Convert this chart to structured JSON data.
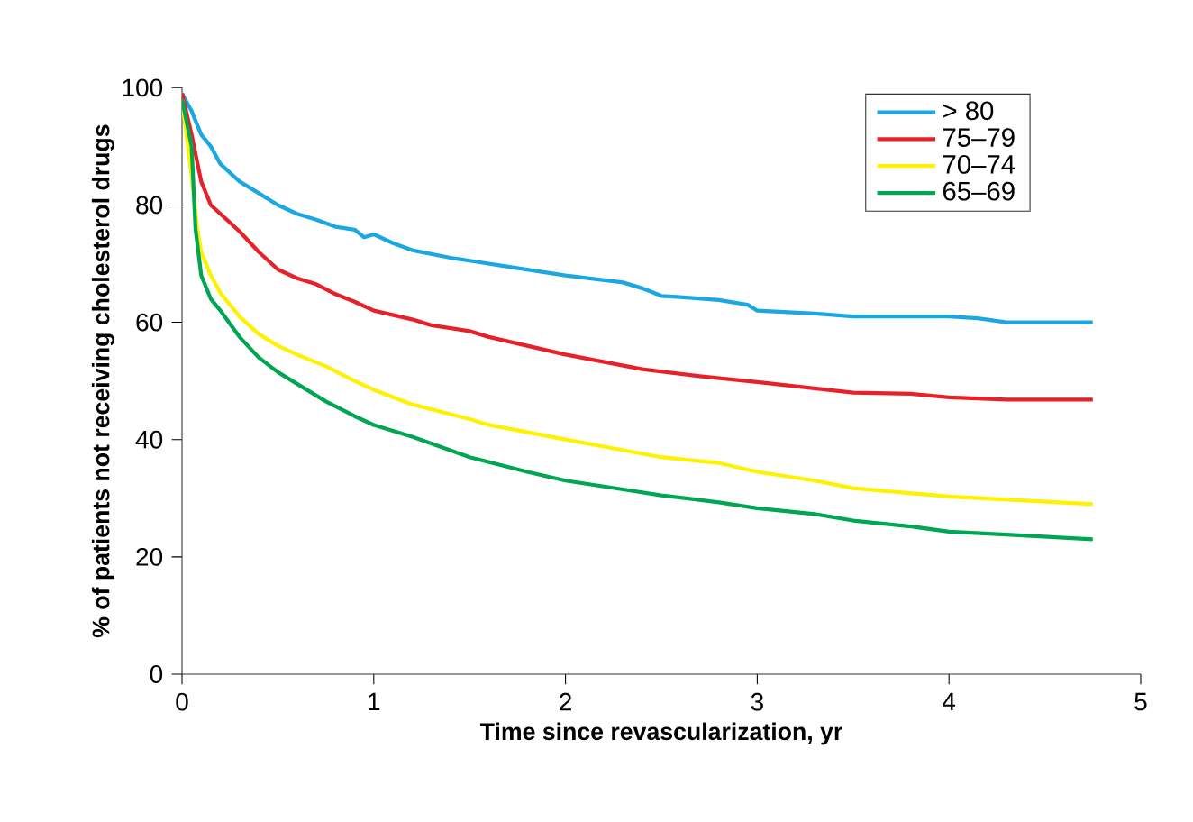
{
  "chart_data": {
    "type": "line",
    "xlabel": "Time since revascularization, yr",
    "ylabel": "% of patients not receiving cholesterol drugs",
    "xlim": [
      0,
      5
    ],
    "ylim": [
      0,
      100
    ],
    "xticks": [
      0,
      1,
      2,
      3,
      4,
      5
    ],
    "yticks": [
      0,
      20,
      40,
      60,
      80,
      100
    ],
    "legend": "top right",
    "grid": false,
    "marker": "none",
    "line_style": "solid",
    "series": [
      {
        "name": "> 80",
        "color": "#1ba7e1",
        "x": [
          0,
          0.05,
          0.1,
          0.15,
          0.2,
          0.3,
          0.4,
          0.5,
          0.6,
          0.7,
          0.8,
          0.9,
          0.95,
          1.0,
          1.1,
          1.2,
          1.4,
          1.5,
          1.7,
          1.8,
          2.0,
          2.3,
          2.4,
          2.5,
          2.6,
          2.8,
          2.95,
          3.0,
          3.3,
          3.5,
          4.0,
          4.15,
          4.3,
          4.75
        ],
        "values": [
          99,
          96,
          92,
          90,
          87,
          84,
          82,
          80,
          78.5,
          77.5,
          76.3,
          75.8,
          74.5,
          75,
          73.5,
          72.3,
          71,
          70.5,
          69.5,
          69,
          68,
          66.8,
          65.8,
          64.5,
          64.3,
          63.8,
          63,
          62,
          61.5,
          61,
          61,
          60.7,
          60,
          60
        ]
      },
      {
        "name": "75–79",
        "color": "#e8202a",
        "x": [
          0,
          0.05,
          0.1,
          0.15,
          0.2,
          0.3,
          0.4,
          0.5,
          0.6,
          0.7,
          0.8,
          0.9,
          1.0,
          1.2,
          1.3,
          1.5,
          1.6,
          2.0,
          2.4,
          2.7,
          3.0,
          3.5,
          3.8,
          4.0,
          4.3,
          4.75
        ],
        "values": [
          99,
          92,
          84,
          80,
          78.5,
          75.5,
          72,
          69,
          67.5,
          66.5,
          64.8,
          63.5,
          62,
          60.5,
          59.5,
          58.5,
          57.5,
          54.5,
          52,
          50.8,
          49.8,
          48,
          47.8,
          47.2,
          46.8,
          46.8
        ]
      },
      {
        "name": "70–74",
        "color": "#fff200",
        "x": [
          0,
          0.05,
          0.08,
          0.1,
          0.15,
          0.2,
          0.3,
          0.4,
          0.5,
          0.6,
          0.75,
          0.9,
          1.0,
          1.2,
          1.5,
          1.6,
          2.0,
          2.2,
          2.5,
          2.8,
          3.0,
          3.3,
          3.5,
          4.0,
          4.75
        ],
        "values": [
          98,
          85,
          76,
          72,
          68,
          65,
          61,
          58,
          56,
          54.5,
          52.5,
          50,
          48.5,
          46,
          43.5,
          42.5,
          40,
          38.8,
          37,
          36,
          34.5,
          33,
          31.7,
          30.3,
          29
        ]
      },
      {
        "name": "65–69",
        "color": "#00a651",
        "x": [
          0,
          0.05,
          0.07,
          0.1,
          0.15,
          0.2,
          0.3,
          0.4,
          0.5,
          0.6,
          0.75,
          0.9,
          1.0,
          1.2,
          1.5,
          1.8,
          2.0,
          2.3,
          2.5,
          2.8,
          3.0,
          3.3,
          3.5,
          3.8,
          4.0,
          4.3,
          4.75
        ],
        "values": [
          98,
          90,
          76,
          68,
          64,
          62,
          57.5,
          54,
          51.5,
          49.5,
          46.5,
          44,
          42.5,
          40.5,
          37,
          34.5,
          33,
          31.5,
          30.5,
          29.3,
          28.3,
          27.3,
          26.2,
          25.2,
          24.3,
          23.8,
          23
        ]
      }
    ]
  }
}
